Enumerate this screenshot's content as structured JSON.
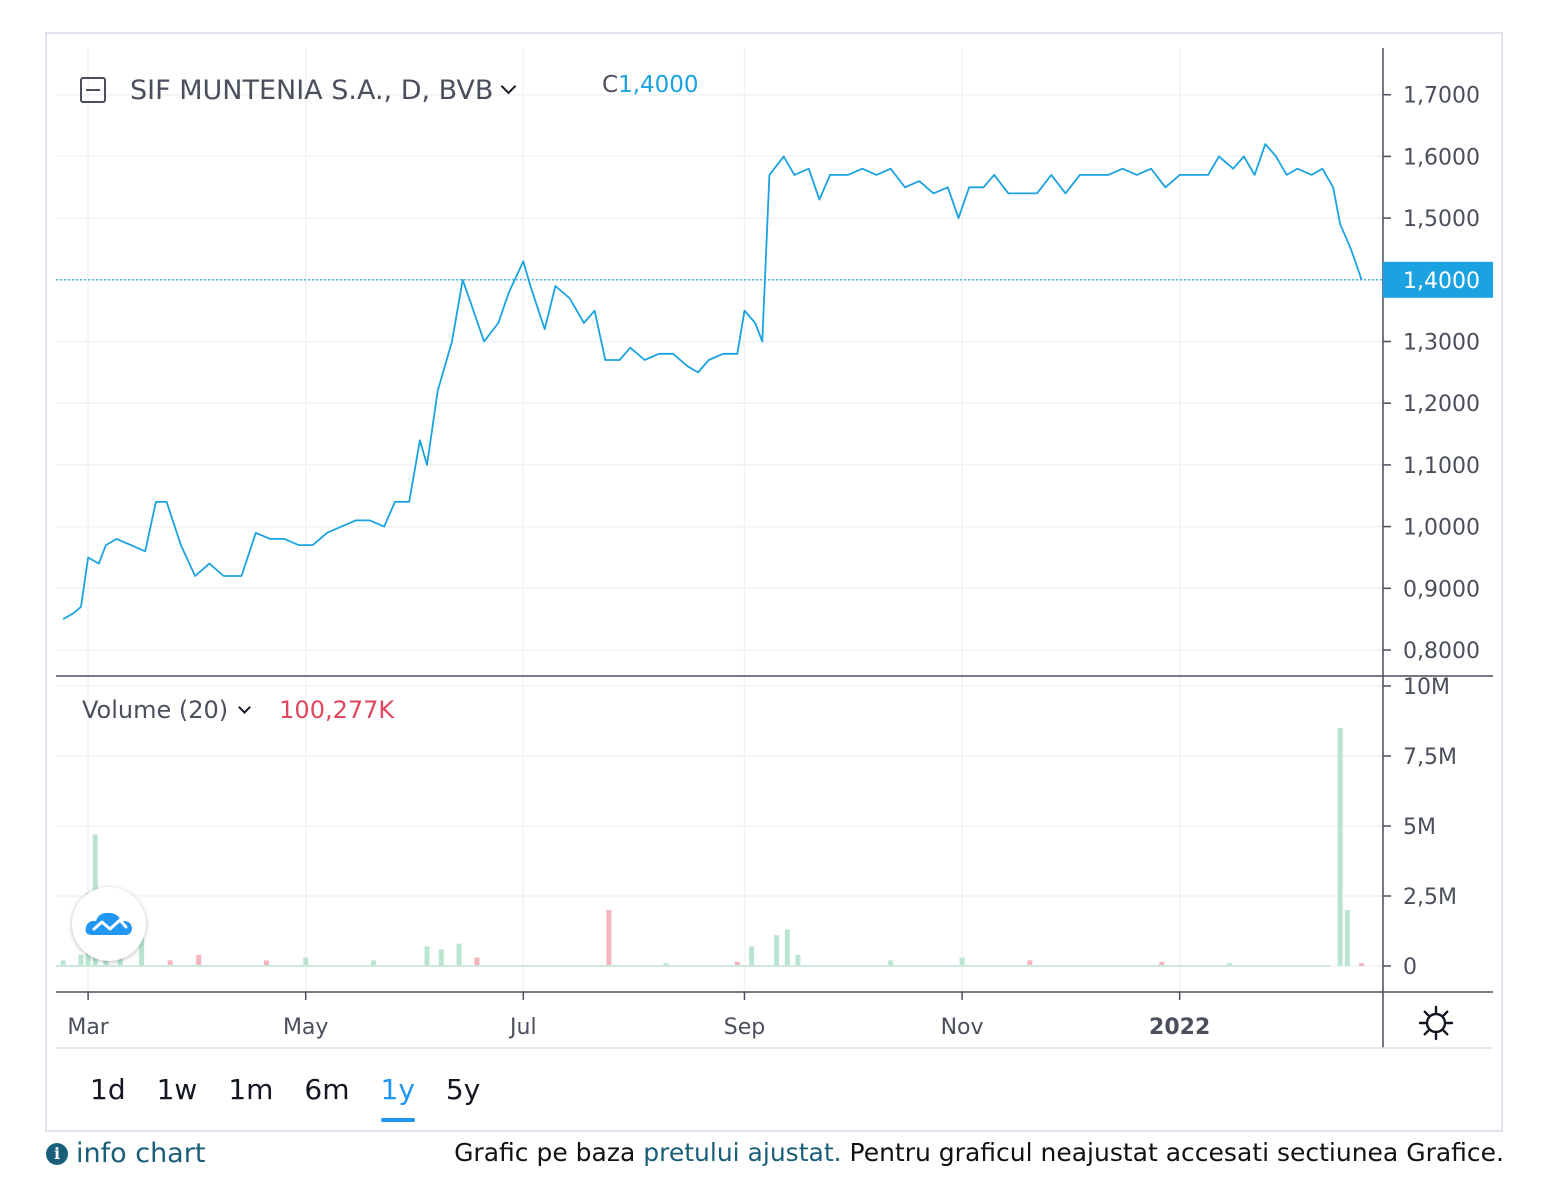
{
  "legend": {
    "symbol": "SIF MUNTENIA S.A., D, BVB",
    "close_label": "C",
    "close_value": "1,4000"
  },
  "volume_legend": {
    "label": "Volume (20)",
    "value": "100,277K"
  },
  "ranges": [
    "1d",
    "1w",
    "1m",
    "6m",
    "1y",
    "5y"
  ],
  "active_range": "1y",
  "info_link": "info chart",
  "footer": {
    "prefix": "Grafic pe baza ",
    "link": "pretului ajustat.",
    "suffix": " Pentru graficul neajustat accesati sectiunea Grafice."
  },
  "colors": {
    "line": "#1aa3e0",
    "vol_up": "#b9e4d0",
    "vol_down": "#f5b5bd",
    "price_tag": "#1aa3e0",
    "volume_value": "#e0465d"
  },
  "chart_data": [
    {
      "type": "line",
      "name": "price",
      "x_ticks": [
        "Mar",
        "May",
        "Jul",
        "Sep",
        "Nov",
        "2022"
      ],
      "y_ticks": [
        "1,7000",
        "1,6000",
        "1,5000",
        "1,4000",
        "1,3000",
        "1,2000",
        "1,1000",
        "1,0000",
        "0,9000",
        "0,8000"
      ],
      "ylim": [
        0.78,
        1.75
      ],
      "last_price": "1,4000",
      "points": [
        [
          "2021-02-22",
          0.85
        ],
        [
          "2021-02-25",
          0.86
        ],
        [
          "2021-02-27",
          0.87
        ],
        [
          "2021-03-01",
          0.95
        ],
        [
          "2021-03-04",
          0.94
        ],
        [
          "2021-03-06",
          0.97
        ],
        [
          "2021-03-09",
          0.98
        ],
        [
          "2021-03-13",
          0.97
        ],
        [
          "2021-03-17",
          0.96
        ],
        [
          "2021-03-20",
          1.04
        ],
        [
          "2021-03-23",
          1.04
        ],
        [
          "2021-03-27",
          0.97
        ],
        [
          "2021-03-31",
          0.92
        ],
        [
          "2021-04-04",
          0.94
        ],
        [
          "2021-04-08",
          0.92
        ],
        [
          "2021-04-13",
          0.92
        ],
        [
          "2021-04-17",
          0.99
        ],
        [
          "2021-04-21",
          0.98
        ],
        [
          "2021-04-25",
          0.98
        ],
        [
          "2021-04-29",
          0.97
        ],
        [
          "2021-05-03",
          0.97
        ],
        [
          "2021-05-07",
          0.99
        ],
        [
          "2021-05-11",
          1.0
        ],
        [
          "2021-05-15",
          1.01
        ],
        [
          "2021-05-19",
          1.01
        ],
        [
          "2021-05-23",
          1.0
        ],
        [
          "2021-05-26",
          1.04
        ],
        [
          "2021-05-30",
          1.04
        ],
        [
          "2021-06-02",
          1.14
        ],
        [
          "2021-06-04",
          1.1
        ],
        [
          "2021-06-07",
          1.22
        ],
        [
          "2021-06-11",
          1.3
        ],
        [
          "2021-06-14",
          1.4
        ],
        [
          "2021-06-17",
          1.35
        ],
        [
          "2021-06-20",
          1.3
        ],
        [
          "2021-06-24",
          1.33
        ],
        [
          "2021-06-27",
          1.38
        ],
        [
          "2021-07-01",
          1.43
        ],
        [
          "2021-07-03",
          1.39
        ],
        [
          "2021-07-07",
          1.32
        ],
        [
          "2021-07-10",
          1.39
        ],
        [
          "2021-07-14",
          1.37
        ],
        [
          "2021-07-18",
          1.33
        ],
        [
          "2021-07-21",
          1.35
        ],
        [
          "2021-07-24",
          1.27
        ],
        [
          "2021-07-28",
          1.27
        ],
        [
          "2021-07-31",
          1.29
        ],
        [
          "2021-08-04",
          1.27
        ],
        [
          "2021-08-08",
          1.28
        ],
        [
          "2021-08-12",
          1.28
        ],
        [
          "2021-08-16",
          1.26
        ],
        [
          "2021-08-19",
          1.25
        ],
        [
          "2021-08-22",
          1.27
        ],
        [
          "2021-08-26",
          1.28
        ],
        [
          "2021-08-30",
          1.28
        ],
        [
          "2021-09-01",
          1.35
        ],
        [
          "2021-09-04",
          1.33
        ],
        [
          "2021-09-06",
          1.3
        ],
        [
          "2021-09-08",
          1.57
        ],
        [
          "2021-09-12",
          1.6
        ],
        [
          "2021-09-15",
          1.57
        ],
        [
          "2021-09-19",
          1.58
        ],
        [
          "2021-09-22",
          1.53
        ],
        [
          "2021-09-25",
          1.57
        ],
        [
          "2021-09-30",
          1.57
        ],
        [
          "2021-10-04",
          1.58
        ],
        [
          "2021-10-08",
          1.57
        ],
        [
          "2021-10-12",
          1.58
        ],
        [
          "2021-10-16",
          1.55
        ],
        [
          "2021-10-20",
          1.56
        ],
        [
          "2021-10-24",
          1.54
        ],
        [
          "2021-10-28",
          1.55
        ],
        [
          "2021-10-31",
          1.5
        ],
        [
          "2021-11-03",
          1.55
        ],
        [
          "2021-11-07",
          1.55
        ],
        [
          "2021-11-10",
          1.57
        ],
        [
          "2021-11-14",
          1.54
        ],
        [
          "2021-11-18",
          1.54
        ],
        [
          "2021-11-22",
          1.54
        ],
        [
          "2021-11-26",
          1.57
        ],
        [
          "2021-11-30",
          1.54
        ],
        [
          "2021-12-04",
          1.57
        ],
        [
          "2021-12-08",
          1.57
        ],
        [
          "2021-12-12",
          1.57
        ],
        [
          "2021-12-16",
          1.58
        ],
        [
          "2021-12-20",
          1.57
        ],
        [
          "2021-12-24",
          1.58
        ],
        [
          "2021-12-28",
          1.55
        ],
        [
          "2022-01-01",
          1.57
        ],
        [
          "2022-01-05",
          1.57
        ],
        [
          "2022-01-09",
          1.57
        ],
        [
          "2022-01-12",
          1.6
        ],
        [
          "2022-01-16",
          1.58
        ],
        [
          "2022-01-19",
          1.6
        ],
        [
          "2022-01-22",
          1.57
        ],
        [
          "2022-01-25",
          1.62
        ],
        [
          "2022-01-28",
          1.6
        ],
        [
          "2022-01-31",
          1.57
        ],
        [
          "2022-02-03",
          1.58
        ],
        [
          "2022-02-07",
          1.57
        ],
        [
          "2022-02-10",
          1.58
        ],
        [
          "2022-02-13",
          1.55
        ],
        [
          "2022-02-15",
          1.49
        ],
        [
          "2022-02-18",
          1.45
        ],
        [
          "2022-02-21",
          1.4
        ]
      ]
    },
    {
      "type": "bar",
      "name": "volume",
      "y_ticks": [
        "10M",
        "7,5M",
        "5M",
        "2,5M",
        "0"
      ],
      "ylim": [
        0,
        10000000
      ],
      "bars": [
        [
          "2021-02-22",
          200000,
          "up"
        ],
        [
          "2021-02-27",
          400000,
          "up"
        ],
        [
          "2021-03-01",
          2600000,
          "up"
        ],
        [
          "2021-03-03",
          4700000,
          "up"
        ],
        [
          "2021-03-06",
          1200000,
          "up"
        ],
        [
          "2021-03-10",
          900000,
          "up"
        ],
        [
          "2021-03-16",
          1000000,
          "up"
        ],
        [
          "2021-03-24",
          200000,
          "down"
        ],
        [
          "2021-04-01",
          400000,
          "down"
        ],
        [
          "2021-04-20",
          200000,
          "down"
        ],
        [
          "2021-05-01",
          300000,
          "up"
        ],
        [
          "2021-05-20",
          200000,
          "up"
        ],
        [
          "2021-06-04",
          700000,
          "up"
        ],
        [
          "2021-06-08",
          600000,
          "up"
        ],
        [
          "2021-06-13",
          800000,
          "up"
        ],
        [
          "2021-06-18",
          300000,
          "down"
        ],
        [
          "2021-07-25",
          2000000,
          "down"
        ],
        [
          "2021-08-10",
          100000,
          "up"
        ],
        [
          "2021-08-30",
          150000,
          "down"
        ],
        [
          "2021-09-03",
          700000,
          "up"
        ],
        [
          "2021-09-10",
          1100000,
          "up"
        ],
        [
          "2021-09-13",
          1300000,
          "up"
        ],
        [
          "2021-09-16",
          400000,
          "up"
        ],
        [
          "2021-10-12",
          200000,
          "up"
        ],
        [
          "2021-11-01",
          300000,
          "up"
        ],
        [
          "2021-11-20",
          200000,
          "down"
        ],
        [
          "2021-12-27",
          150000,
          "down"
        ],
        [
          "2022-01-15",
          100000,
          "up"
        ],
        [
          "2022-02-15",
          8500000,
          "up"
        ],
        [
          "2022-02-17",
          2000000,
          "up"
        ],
        [
          "2022-02-21",
          100000,
          "down"
        ]
      ]
    }
  ]
}
